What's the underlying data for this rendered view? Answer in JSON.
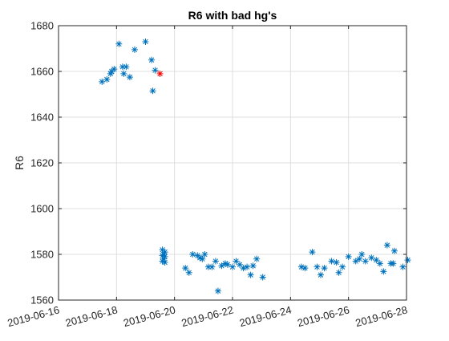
{
  "chart_data": {
    "type": "scatter",
    "title": "R6 with bad hg's",
    "xlabel": "",
    "ylabel": "R6",
    "xlim": [
      "2019-06-16",
      "2019-06-28"
    ],
    "ylim": [
      1560,
      1680
    ],
    "xticks": [
      "2019-06-16",
      "2019-06-18",
      "2019-06-20",
      "2019-06-22",
      "2019-06-24",
      "2019-06-26",
      "2019-06-28"
    ],
    "yticks": [
      1560,
      1580,
      1600,
      1620,
      1640,
      1660,
      1680
    ],
    "grid": true,
    "marker": "*",
    "colors": {
      "series": "#0072BD",
      "highlight": "#FF0000",
      "grid": "#DFDFDF",
      "axis": "#262626"
    },
    "series": [
      {
        "color": "#0072BD",
        "points": [
          [
            "2019-06-17T12:00",
            1655.5
          ],
          [
            "2019-06-17T16:00",
            1656.5
          ],
          [
            "2019-06-17T19:00",
            1659
          ],
          [
            "2019-06-17T20:00",
            1660
          ],
          [
            "2019-06-17T22:00",
            1661
          ],
          [
            "2019-06-18T02:00",
            1672
          ],
          [
            "2019-06-18T05:00",
            1662
          ],
          [
            "2019-06-18T06:00",
            1659
          ],
          [
            "2019-06-18T08:00",
            1662
          ],
          [
            "2019-06-18T11:00",
            1657.5
          ],
          [
            "2019-06-18T15:00",
            1669.5
          ],
          [
            "2019-06-19T00:00",
            1673
          ],
          [
            "2019-06-19T05:00",
            1665
          ],
          [
            "2019-06-19T06:00",
            1651.5
          ],
          [
            "2019-06-19T08:00",
            1660.5
          ],
          [
            "2019-06-19T14:00",
            1582
          ],
          [
            "2019-06-19T14:00",
            1579.5
          ],
          [
            "2019-06-19T14:00",
            1577
          ],
          [
            "2019-06-19T15:00",
            1580
          ],
          [
            "2019-06-19T15:00",
            1578
          ],
          [
            "2019-06-19T16:00",
            1576.5
          ],
          [
            "2019-06-19T16:00",
            1579
          ],
          [
            "2019-06-19T16:00",
            1581
          ],
          [
            "2019-06-20T09:00",
            1574
          ],
          [
            "2019-06-20T12:00",
            1572
          ],
          [
            "2019-06-20T15:00",
            1580
          ],
          [
            "2019-06-20T19:00",
            1579.5
          ],
          [
            "2019-06-20T21:00",
            1578.5
          ],
          [
            "2019-06-20T23:00",
            1578
          ],
          [
            "2019-06-21T01:00",
            1580
          ],
          [
            "2019-06-21T04:00",
            1574.5
          ],
          [
            "2019-06-21T07:00",
            1574.5
          ],
          [
            "2019-06-21T10:00",
            1577
          ],
          [
            "2019-06-21T12:00",
            1564
          ],
          [
            "2019-06-21T15:00",
            1575
          ],
          [
            "2019-06-21T18:00",
            1576
          ],
          [
            "2019-06-21T20:00",
            1575.5
          ],
          [
            "2019-06-22T00:00",
            1574.5
          ],
          [
            "2019-06-22T03:00",
            1577
          ],
          [
            "2019-06-22T06:00",
            1575.5
          ],
          [
            "2019-06-22T09:00",
            1574
          ],
          [
            "2019-06-22T12:00",
            1574.5
          ],
          [
            "2019-06-22T15:00",
            1571
          ],
          [
            "2019-06-22T17:00",
            1575
          ],
          [
            "2019-06-22T20:00",
            1578
          ],
          [
            "2019-06-23T01:00",
            1570
          ],
          [
            "2019-06-24T09:00",
            1574.5
          ],
          [
            "2019-06-24T12:00",
            1574
          ],
          [
            "2019-06-24T18:00",
            1581
          ],
          [
            "2019-06-24T22:00",
            1574.5
          ],
          [
            "2019-06-25T01:00",
            1571
          ],
          [
            "2019-06-25T04:00",
            1574
          ],
          [
            "2019-06-25T10:00",
            1577
          ],
          [
            "2019-06-25T14:00",
            1576.5
          ],
          [
            "2019-06-25T16:00",
            1572
          ],
          [
            "2019-06-25T19:00",
            1574.5
          ],
          [
            "2019-06-26T00:00",
            1579
          ],
          [
            "2019-06-26T06:00",
            1577
          ],
          [
            "2019-06-26T09:00",
            1578
          ],
          [
            "2019-06-26T11:00",
            1580
          ],
          [
            "2019-06-26T14:00",
            1577
          ],
          [
            "2019-06-26T19:00",
            1578.5
          ],
          [
            "2019-06-26T23:00",
            1577.5
          ],
          [
            "2019-06-27T02:00",
            1576
          ],
          [
            "2019-06-27T05:00",
            1572.5
          ],
          [
            "2019-06-27T08:00",
            1584
          ],
          [
            "2019-06-27T11:00",
            1576
          ],
          [
            "2019-06-27T13:00",
            1576
          ],
          [
            "2019-06-27T14:00",
            1581.5
          ],
          [
            "2019-06-27T21:00",
            1574.5
          ],
          [
            "2019-06-28T01:00",
            1577.5
          ]
        ]
      },
      {
        "color": "#FF0000",
        "points": [
          [
            "2019-06-19T12:00",
            1659
          ]
        ]
      }
    ]
  }
}
